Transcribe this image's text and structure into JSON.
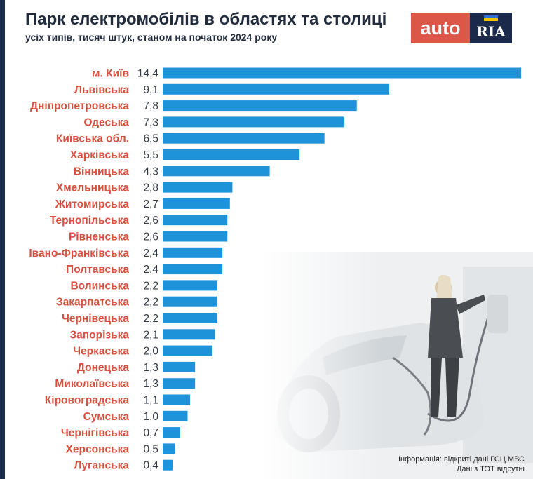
{
  "header": {
    "title": "Парк електромобілів в областях та столиці",
    "subtitle": "усіх типів, тисяч штук, станом на початок 2024 року"
  },
  "logo": {
    "left_text": "auto",
    "right_text": "RIA",
    "flag_colors": [
      "#2f6fd4",
      "#f2c200"
    ]
  },
  "colors": {
    "bar": "#1f93da",
    "category_label": "#d8503f",
    "value_label": "#333a44",
    "logo_left": "#db5747",
    "logo_right": "#1b2a4a"
  },
  "chart_data": {
    "type": "bar",
    "orientation": "horizontal",
    "categories": [
      "м. Київ",
      "Львівська",
      "Дніпропетровська",
      "Одеська",
      "Київська обл.",
      "Харківська",
      "Вінницька",
      "Хмельницька",
      "Житомирська",
      "Тернопільська",
      "Рівненська",
      "Івано-Франківська",
      "Полтавська",
      "Волинська",
      "Закарпатська",
      "Чернівецька",
      "Запорізька",
      "Черкаська",
      "Донецька",
      "Миколаївська",
      "Кіровоградська",
      "Сумська",
      "Чернігівська",
      "Херсонська",
      "Луганська"
    ],
    "values": [
      14.4,
      9.1,
      7.8,
      7.3,
      6.5,
      5.5,
      4.3,
      2.8,
      2.7,
      2.6,
      2.6,
      2.4,
      2.4,
      2.2,
      2.2,
      2.2,
      2.1,
      2.0,
      1.3,
      1.3,
      1.1,
      1.0,
      0.7,
      0.5,
      0.4
    ],
    "value_labels": [
      "14,4",
      "9,1",
      "7,8",
      "7,3",
      "6,5",
      "5,5",
      "4,3",
      "2,8",
      "2,7",
      "2,6",
      "2,6",
      "2,4",
      "2,4",
      "2,2",
      "2,2",
      "2,2",
      "2,1",
      "2,0",
      "1,3",
      "1,3",
      "1,1",
      "1,0",
      "0,7",
      "0,5",
      "0,4"
    ],
    "xlim": [
      0,
      14.4
    ],
    "grid": false,
    "legend": "none"
  },
  "source": {
    "line1": "Інформація: відкриті дані ГСЦ МВС",
    "line2": "Дані з ТОТ відсутні"
  }
}
